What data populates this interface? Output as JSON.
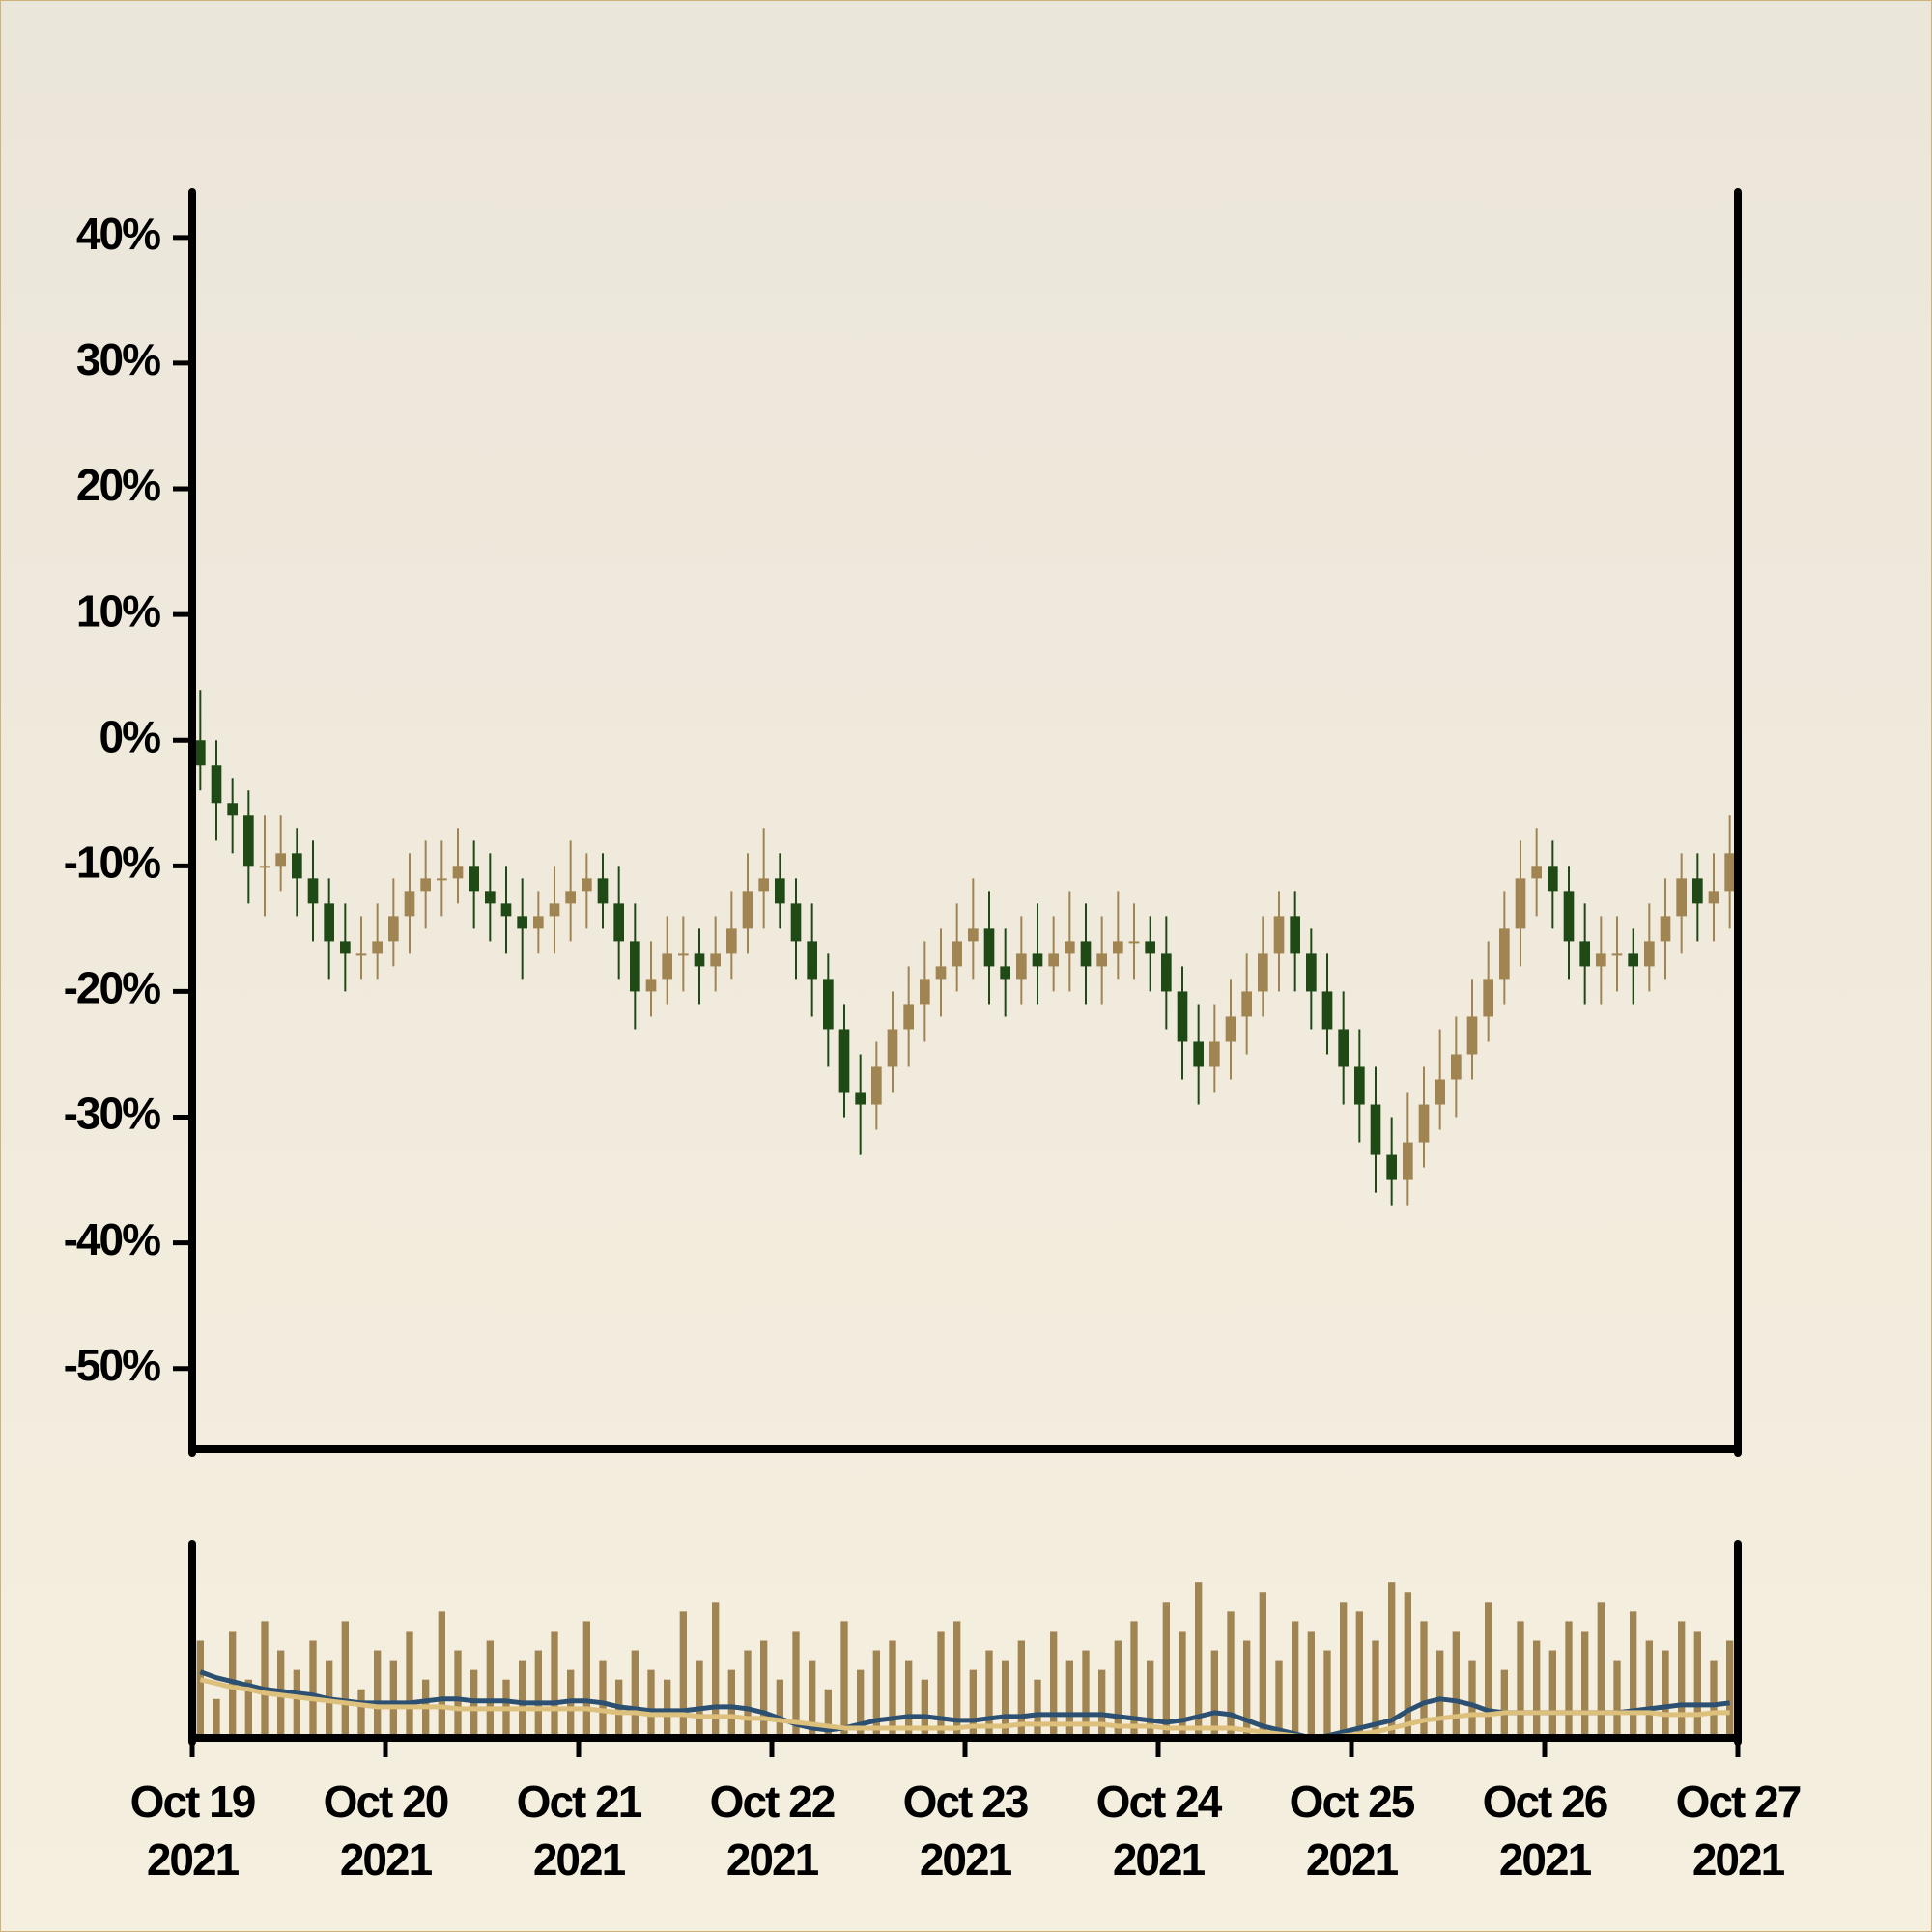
{
  "chart_data": [
    {
      "type": "candlestick",
      "xlim": [
        "2021-10-19",
        "2021-10-27"
      ],
      "ylim": [
        -56.4,
        43.6
      ],
      "yticks": [
        {
          "value": 40,
          "label": "40%"
        },
        {
          "value": 30,
          "label": "30%"
        },
        {
          "value": 20,
          "label": "20%"
        },
        {
          "value": 10,
          "label": "10%"
        },
        {
          "value": 0,
          "label": "0%"
        },
        {
          "value": -10,
          "label": "-10%"
        },
        {
          "value": -20,
          "label": "-20%"
        },
        {
          "value": -30,
          "label": "-30%"
        },
        {
          "value": -40,
          "label": "-40%"
        },
        {
          "value": -50,
          "label": "-50%"
        }
      ],
      "up_color": "#a08452",
      "down_color": "#1f4a16",
      "x": [
        "2021-10-19 01:00",
        "2021-10-19 03:00",
        "2021-10-19 05:00",
        "2021-10-19 07:00",
        "2021-10-19 09:00",
        "2021-10-19 11:00",
        "2021-10-19 13:00",
        "2021-10-19 15:00",
        "2021-10-19 17:00",
        "2021-10-19 19:00",
        "2021-10-19 21:00",
        "2021-10-19 23:00",
        "2021-10-20 01:00",
        "2021-10-20 03:00",
        "2021-10-20 05:00",
        "2021-10-20 07:00",
        "2021-10-20 09:00",
        "2021-10-20 11:00",
        "2021-10-20 13:00",
        "2021-10-20 15:00",
        "2021-10-20 17:00",
        "2021-10-20 19:00",
        "2021-10-20 21:00",
        "2021-10-20 23:00",
        "2021-10-21 01:00",
        "2021-10-21 03:00",
        "2021-10-21 05:00",
        "2021-10-21 07:00",
        "2021-10-21 09:00",
        "2021-10-21 11:00",
        "2021-10-21 13:00",
        "2021-10-21 15:00",
        "2021-10-21 17:00",
        "2021-10-21 19:00",
        "2021-10-21 21:00",
        "2021-10-21 23:00",
        "2021-10-22 01:00",
        "2021-10-22 03:00",
        "2021-10-22 05:00",
        "2021-10-22 07:00",
        "2021-10-22 09:00",
        "2021-10-22 11:00",
        "2021-10-22 13:00",
        "2021-10-22 15:00",
        "2021-10-22 17:00",
        "2021-10-22 19:00",
        "2021-10-22 21:00",
        "2021-10-22 23:00",
        "2021-10-23 01:00",
        "2021-10-23 03:00",
        "2021-10-23 05:00",
        "2021-10-23 07:00",
        "2021-10-23 09:00",
        "2021-10-23 11:00",
        "2021-10-23 13:00",
        "2021-10-23 15:00",
        "2021-10-23 17:00",
        "2021-10-23 19:00",
        "2021-10-23 21:00",
        "2021-10-23 23:00",
        "2021-10-24 01:00",
        "2021-10-24 03:00",
        "2021-10-24 05:00",
        "2021-10-24 07:00",
        "2021-10-24 09:00",
        "2021-10-24 11:00",
        "2021-10-24 13:00",
        "2021-10-24 15:00",
        "2021-10-24 17:00",
        "2021-10-24 19:00",
        "2021-10-24 21:00",
        "2021-10-24 23:00",
        "2021-10-25 01:00",
        "2021-10-25 03:00",
        "2021-10-25 05:00",
        "2021-10-25 07:00",
        "2021-10-25 09:00",
        "2021-10-25 11:00",
        "2021-10-25 13:00",
        "2021-10-25 15:00",
        "2021-10-25 17:00",
        "2021-10-25 19:00",
        "2021-10-25 21:00",
        "2021-10-25 23:00",
        "2021-10-26 01:00",
        "2021-10-26 03:00",
        "2021-10-26 05:00",
        "2021-10-26 07:00",
        "2021-10-26 09:00",
        "2021-10-26 11:00",
        "2021-10-26 13:00",
        "2021-10-26 15:00",
        "2021-10-26 17:00",
        "2021-10-26 19:00",
        "2021-10-26 21:00",
        "2021-10-26 23:00"
      ],
      "open": [
        0,
        -2,
        -5,
        -6,
        -10,
        -10,
        -9,
        -11,
        -13,
        -16,
        -17,
        -17,
        -16,
        -14,
        -12,
        -11,
        -11,
        -10,
        -12,
        -13,
        -14,
        -15,
        -14,
        -13,
        -12,
        -11,
        -13,
        -16,
        -20,
        -19,
        -17,
        -17,
        -18,
        -17,
        -15,
        -12,
        -11,
        -13,
        -16,
        -19,
        -23,
        -28,
        -29,
        -26,
        -23,
        -21,
        -19,
        -18,
        -16,
        -15,
        -18,
        -19,
        -17,
        -18,
        -17,
        -16,
        -18,
        -17,
        -16,
        -16,
        -17,
        -20,
        -24,
        -26,
        -24,
        -22,
        -20,
        -17,
        -14,
        -17,
        -20,
        -23,
        -26,
        -29,
        -33,
        -35,
        -32,
        -29,
        -27,
        -25,
        -22,
        -19,
        -15,
        -11,
        -10,
        -12,
        -16,
        -18,
        -17,
        -17,
        -18,
        -16,
        -14,
        -11,
        -13,
        -12
      ],
      "high": [
        4,
        0,
        -3,
        -4,
        -6,
        -6,
        -7,
        -8,
        -11,
        -13,
        -14,
        -13,
        -11,
        -9,
        -8,
        -8,
        -7,
        -8,
        -9,
        -10,
        -11,
        -12,
        -10,
        -8,
        -9,
        -9,
        -10,
        -13,
        -16,
        -14,
        -14,
        -15,
        -14,
        -12,
        -9,
        -7,
        -9,
        -11,
        -13,
        -17,
        -21,
        -25,
        -24,
        -20,
        -18,
        -16,
        -15,
        -13,
        -11,
        -12,
        -15,
        -14,
        -13,
        -14,
        -12,
        -13,
        -14,
        -12,
        -13,
        -14,
        -14,
        -18,
        -21,
        -21,
        -19,
        -17,
        -14,
        -12,
        -12,
        -15,
        -17,
        -20,
        -23,
        -26,
        -30,
        -28,
        -26,
        -23,
        -22,
        -19,
        -16,
        -12,
        -8,
        -7,
        -8,
        -10,
        -13,
        -14,
        -14,
        -15,
        -13,
        -11,
        -9,
        -9,
        -9,
        -6
      ],
      "low": [
        -4,
        -8,
        -9,
        -13,
        -14,
        -12,
        -14,
        -16,
        -19,
        -20,
        -19,
        -19,
        -18,
        -17,
        -15,
        -14,
        -13,
        -15,
        -16,
        -17,
        -19,
        -17,
        -17,
        -16,
        -15,
        -15,
        -19,
        -23,
        -22,
        -21,
        -20,
        -21,
        -20,
        -19,
        -17,
        -15,
        -15,
        -19,
        -22,
        -26,
        -30,
        -33,
        -31,
        -28,
        -26,
        -24,
        -22,
        -20,
        -19,
        -21,
        -22,
        -21,
        -21,
        -20,
        -20,
        -21,
        -21,
        -19,
        -19,
        -20,
        -23,
        -27,
        -29,
        -28,
        -27,
        -25,
        -22,
        -20,
        -20,
        -23,
        -25,
        -29,
        -32,
        -36,
        -37,
        -37,
        -34,
        -31,
        -30,
        -27,
        -24,
        -21,
        -18,
        -14,
        -15,
        -19,
        -21,
        -21,
        -20,
        -21,
        -20,
        -19,
        -17,
        -16,
        -16,
        -15
      ],
      "close": [
        -2,
        -5,
        -6,
        -10,
        -10,
        -9,
        -11,
        -13,
        -16,
        -17,
        -17,
        -16,
        -14,
        -12,
        -11,
        -11,
        -10,
        -12,
        -13,
        -14,
        -15,
        -14,
        -13,
        -12,
        -11,
        -13,
        -16,
        -20,
        -19,
        -17,
        -17,
        -18,
        -17,
        -15,
        -12,
        -11,
        -13,
        -16,
        -19,
        -23,
        -28,
        -29,
        -26,
        -23,
        -21,
        -19,
        -18,
        -16,
        -15,
        -18,
        -19,
        -17,
        -18,
        -17,
        -16,
        -18,
        -17,
        -16,
        -16,
        -17,
        -20,
        -24,
        -26,
        -24,
        -22,
        -20,
        -17,
        -14,
        -17,
        -20,
        -23,
        -26,
        -29,
        -33,
        -35,
        -32,
        -29,
        -27,
        -25,
        -22,
        -19,
        -15,
        -11,
        -10,
        -12,
        -16,
        -18,
        -17,
        -17,
        -18,
        -16,
        -14,
        -11,
        -13,
        -12,
        -9
      ]
    },
    {
      "type": "volume",
      "xlim": [
        "2021-10-19",
        "2021-10-27"
      ],
      "ylim": [
        0,
        100
      ],
      "xticks": [
        {
          "value": "2021-10-19",
          "label": "Oct 19\n2021"
        },
        {
          "value": "2021-10-20",
          "label": "Oct 20\n2021"
        },
        {
          "value": "2021-10-21",
          "label": "Oct 21\n2021"
        },
        {
          "value": "2021-10-22",
          "label": "Oct 22\n2021"
        },
        {
          "value": "2021-10-23",
          "label": "Oct 23\n2021"
        },
        {
          "value": "2021-10-24",
          "label": "Oct 24\n2021"
        },
        {
          "value": "2021-10-25",
          "label": "Oct 25\n2021"
        },
        {
          "value": "2021-10-26",
          "label": "Oct 26\n2021"
        },
        {
          "value": "2021-10-27",
          "label": "Oct 27\n2021"
        }
      ],
      "color": "#a08452",
      "values": [
        50,
        20,
        55,
        30,
        60,
        45,
        35,
        50,
        40,
        60,
        25,
        45,
        40,
        55,
        30,
        65,
        45,
        35,
        50,
        30,
        40,
        45,
        55,
        35,
        60,
        40,
        30,
        45,
        35,
        30,
        65,
        40,
        70,
        35,
        45,
        50,
        30,
        55,
        40,
        25,
        60,
        35,
        45,
        50,
        40,
        30,
        55,
        60,
        35,
        45,
        40,
        50,
        30,
        55,
        40,
        45,
        35,
        50,
        60,
        40,
        70,
        55,
        80,
        45,
        65,
        50,
        75,
        40,
        60,
        55,
        45,
        70,
        65,
        50,
        80,
        75,
        60,
        45,
        55,
        40,
        70,
        35,
        60,
        50,
        45,
        60,
        55,
        70,
        40,
        65,
        50,
        45,
        60,
        55,
        40,
        50
      ],
      "series": [
        {
          "color": "#2c5071",
          "values": [
            34,
            31,
            29,
            27,
            25,
            24,
            23,
            22,
            20,
            19,
            18,
            18,
            18,
            18,
            19,
            20,
            20,
            19,
            19,
            19,
            18,
            18,
            18,
            19,
            19,
            18,
            16,
            15,
            14,
            14,
            14,
            15,
            16,
            16,
            15,
            13,
            10,
            7,
            5,
            4,
            5,
            7,
            9,
            10,
            11,
            11,
            10,
            9,
            9,
            10,
            11,
            11,
            12,
            12,
            12,
            12,
            12,
            11,
            10,
            9,
            8,
            9,
            11,
            13,
            12,
            9,
            6,
            4,
            2,
            0,
            1,
            3,
            5,
            7,
            9,
            14,
            18,
            20,
            19,
            17,
            14,
            13,
            13,
            13,
            13,
            13,
            13,
            13,
            13,
            14,
            15,
            16,
            17,
            17,
            17,
            18
          ]
        },
        {
          "color": "#dcc07c",
          "values": [
            30,
            28,
            26,
            25,
            23,
            22,
            21,
            20,
            19,
            18,
            17,
            16,
            16,
            16,
            16,
            16,
            15,
            15,
            15,
            15,
            15,
            15,
            15,
            15,
            15,
            14,
            13,
            13,
            12,
            12,
            12,
            11,
            11,
            11,
            10,
            10,
            9,
            8,
            7,
            6,
            5,
            5,
            5,
            5,
            5,
            5,
            5,
            5,
            6,
            6,
            6,
            7,
            7,
            7,
            7,
            7,
            7,
            6,
            6,
            6,
            5,
            5,
            5,
            5,
            5,
            4,
            3,
            2,
            1,
            0,
            0,
            1,
            2,
            3,
            5,
            7,
            9,
            10,
            11,
            12,
            12,
            13,
            13,
            13,
            13,
            13,
            13,
            13,
            13,
            13,
            13,
            12,
            12,
            12,
            13,
            13
          ]
        }
      ]
    }
  ]
}
